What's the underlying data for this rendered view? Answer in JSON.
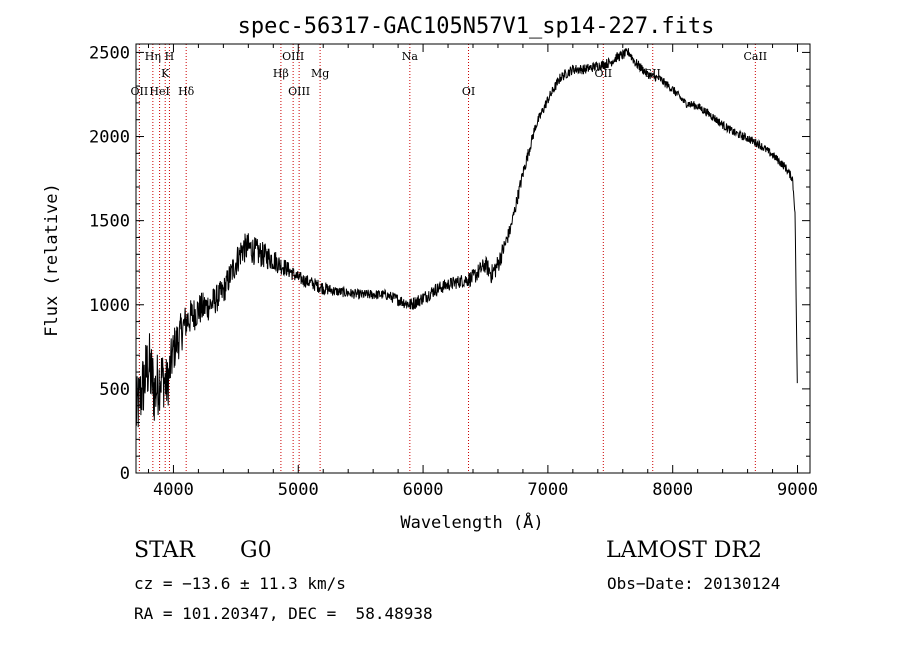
{
  "chart_data": {
    "type": "line",
    "title": "spec-56317-GAC105N57V1_sp14-227.fits",
    "xlabel": "Wavelength (Å)",
    "ylabel": "Flux (relative)",
    "xlim": [
      3700,
      9100
    ],
    "ylim": [
      0,
      2550
    ],
    "xticks": [
      4000,
      5000,
      6000,
      7000,
      8000,
      9000
    ],
    "yticks": [
      0,
      500,
      1000,
      1500,
      2000,
      2500
    ],
    "grid": false,
    "line_color": "#000000",
    "marker_color": "#cc0000",
    "spectral_lines": [
      {
        "label": "OII",
        "x": 3727,
        "label_row": 2
      },
      {
        "label": "Hη",
        "x": 3835,
        "label_row": 0
      },
      {
        "label": "HeI",
        "x": 3889,
        "label_row": 2
      },
      {
        "label": "K",
        "x": 3934,
        "label_row": 1
      },
      {
        "label": "H",
        "x": 3968,
        "label_row": 0
      },
      {
        "label": "Hδ",
        "x": 4102,
        "label_row": 2
      },
      {
        "label": "Hβ",
        "x": 4861,
        "label_row": 1
      },
      {
        "label": "OIII",
        "x": 4959,
        "label_row": 0
      },
      {
        "label": "OIII",
        "x": 5007,
        "label_row": 2
      },
      {
        "label": "Mg",
        "x": 5175,
        "label_row": 1
      },
      {
        "label": "Na",
        "x": 5894,
        "label_row": 0
      },
      {
        "label": "OI",
        "x": 6364,
        "label_row": 2
      },
      {
        "label": "OII",
        "x": 7444,
        "label_row": 1
      },
      {
        "label": "SII",
        "x": 7840,
        "label_row": 1
      },
      {
        "label": "CaII",
        "x": 8662,
        "label_row": 0
      }
    ],
    "series": [
      {
        "x": [
          3700,
          3750,
          3800,
          3850,
          3900,
          3950,
          4000,
          4100,
          4200,
          4300,
          4400,
          4500,
          4550,
          4600,
          4700,
          4800,
          4850,
          4900,
          5000,
          5100,
          5200,
          5300,
          5500,
          5700,
          5900,
          6000,
          6100,
          6200,
          6300,
          6400,
          6500,
          6550,
          6600,
          6700,
          6800,
          6900,
          7000,
          7100,
          7200,
          7300,
          7400,
          7500,
          7550,
          7650,
          7700,
          7800,
          7900,
          8000,
          8100,
          8200,
          8300,
          8400,
          8500,
          8600,
          8700,
          8800,
          8900,
          8960,
          8980,
          9000
        ],
        "y": [
          350,
          500,
          650,
          480,
          580,
          520,
          730,
          900,
          970,
          1000,
          1080,
          1250,
          1330,
          1340,
          1300,
          1270,
          1240,
          1220,
          1160,
          1130,
          1100,
          1080,
          1060,
          1060,
          1000,
          1040,
          1090,
          1120,
          1140,
          1160,
          1240,
          1180,
          1240,
          1450,
          1780,
          2060,
          2220,
          2350,
          2400,
          2400,
          2420,
          2440,
          2470,
          2500,
          2440,
          2370,
          2340,
          2280,
          2200,
          2180,
          2130,
          2070,
          2020,
          1990,
          1950,
          1890,
          1820,
          1750,
          1550,
          420
        ],
        "noise": [
          200,
          200,
          220,
          220,
          180,
          160,
          140,
          110,
          100,
          90,
          80,
          90,
          90,
          90,
          80,
          70,
          60,
          50,
          40,
          40,
          40,
          30,
          30,
          30,
          40,
          40,
          40,
          40,
          40,
          50,
          50,
          60,
          60,
          40,
          40,
          30,
          30,
          30,
          30,
          30,
          30,
          30,
          30,
          30,
          30,
          25,
          25,
          25,
          25,
          25,
          25,
          25,
          25,
          25,
          25,
          25,
          25,
          25,
          20,
          0
        ]
      }
    ]
  },
  "info": {
    "obj_class": "STAR",
    "subclass": "G0",
    "survey": "LAMOST DR2",
    "cz": "cz = −13.6 ± 11.3 km/s",
    "obs_date": "Obs−Date: 20130124",
    "coords": "RA = 101.20347, DEC =  58.48938"
  }
}
